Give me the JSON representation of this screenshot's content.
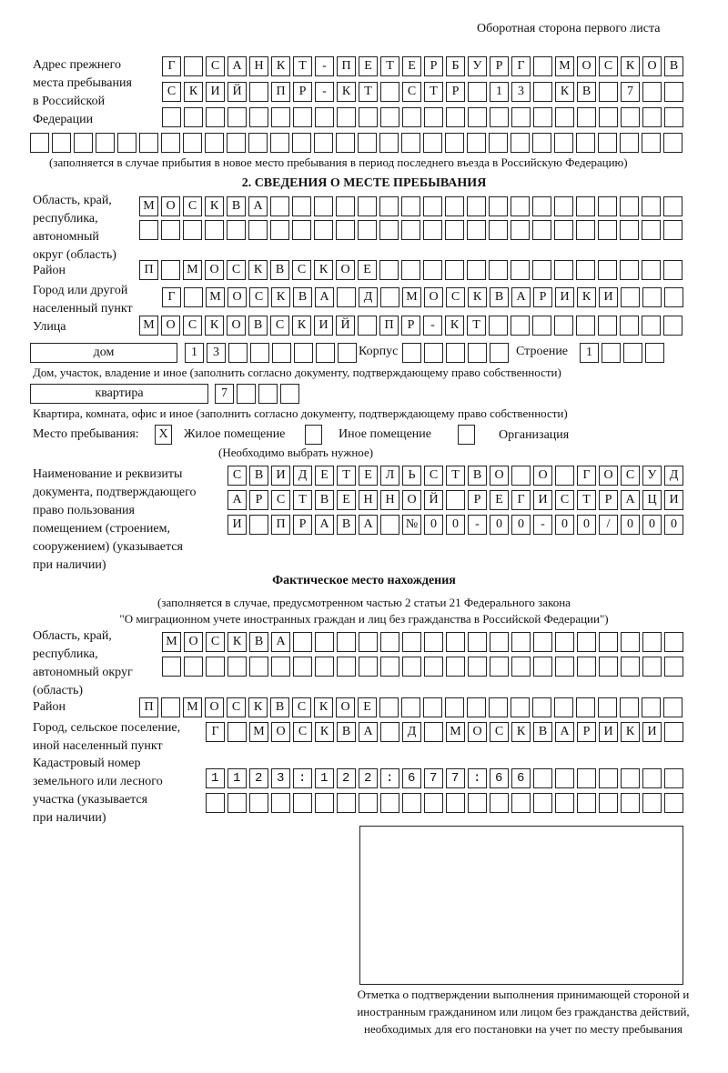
{
  "header": {
    "page_label": "Оборотная сторона первого листа"
  },
  "previous_address": {
    "label": "Адрес прежнего\nместа пребывания\nв Российской\nФедерации",
    "rows": [
      "Г САНКТ-ПЕТЕРБУРГ МОСКОВ",
      "СКИЙ ПР-КТ СТР 13 КВ 7  ",
      "                        ",
      "                              "
    ],
    "note": "(заполняется в случае прибытия в новое место пребывания в период последнего въезда в Российскую Федерацию)"
  },
  "section2": {
    "title": "2. СВЕДЕНИЯ О МЕСТЕ ПРЕБЫВАНИЯ",
    "region_label": "Область, край,\nреспублика,\nавтономный\nокруг (область)",
    "region_rows": [
      "МОСКВА                   ",
      "                         "
    ],
    "district_label": "Район",
    "district_row": "П МОСКВСКОЕ              ",
    "city_label": "Город или другой\nнаселенный пункт",
    "city_row": "Г МОСКВА Д МОСКВАРИКИ   ",
    "street_label": "Улица",
    "street_row": "МОСКОВСКИЙ ПР-КТ         ",
    "house_type": "дом",
    "house_row": "13      ",
    "building_label": "Корпус",
    "building_row": "     ",
    "structure_label": "Строение",
    "structure_row": "1   ",
    "house_note": "Дом, участок, владение и иное (заполнить согласно документу, подтверждающему право собственности)",
    "apartment_type": "квартира",
    "apartment_row": "7   ",
    "apartment_note": "Квартира, комната, офис и иное (заполнить согласно документу, подтверждающему право собственности)",
    "stay_place_label": "Место пребывания:",
    "options": [
      {
        "label": "Жилое помещение",
        "mark": "X"
      },
      {
        "label": "Иное помещение",
        "mark": ""
      },
      {
        "label": "Организация",
        "mark": ""
      }
    ],
    "choose_note": "(Необходимо выбрать нужное)",
    "document_label": "Наименование и реквизиты\nдокумента, подтверждающего\nправо пользования\nпомещением (строением,\nсооружением) (указывается\nпри наличии)",
    "document_rows": [
      "СВИДЕТЕЛЬСТВО О ГОСУД",
      "АРСТВЕННОЙ РЕГИСТРАЦИ",
      "И ПРАВА №00-00-00/000"
    ]
  },
  "actual_location": {
    "title": "Фактическое место нахождения",
    "note_line1": "(заполняется в случае, предусмотренном частью 2 статьи 21 Федерального закона",
    "note_line2": "\"О миграционном учете иностранных граждан и лиц без гражданства в Российской Федерации\")",
    "region_label": "Область, край,\nреспублика,\nавтономный округ\n(область)",
    "region_rows": [
      "МОСКВА                  ",
      "                        "
    ],
    "district_label": "Район",
    "district_row": "П МОСКВСКОЕ              ",
    "city_label": "Город, сельское поселение,\nиной населенный пункт",
    "city_row": "Г МОСКВА Д МОСКВАРИКИ ",
    "cadastral_label": "Кадастровый номер\nземельного или лесного\nучастка (указывается\nпри наличии)",
    "cadastral_rows": [
      "1123:122:677:66       ",
      "                      "
    ]
  },
  "confirmation": {
    "note": "Отметка о подтверждении выполнения принимающей стороной и иностранным гражданином или лицом без гражданства действий, необходимых для его постановки на учет по месту пребывания"
  }
}
